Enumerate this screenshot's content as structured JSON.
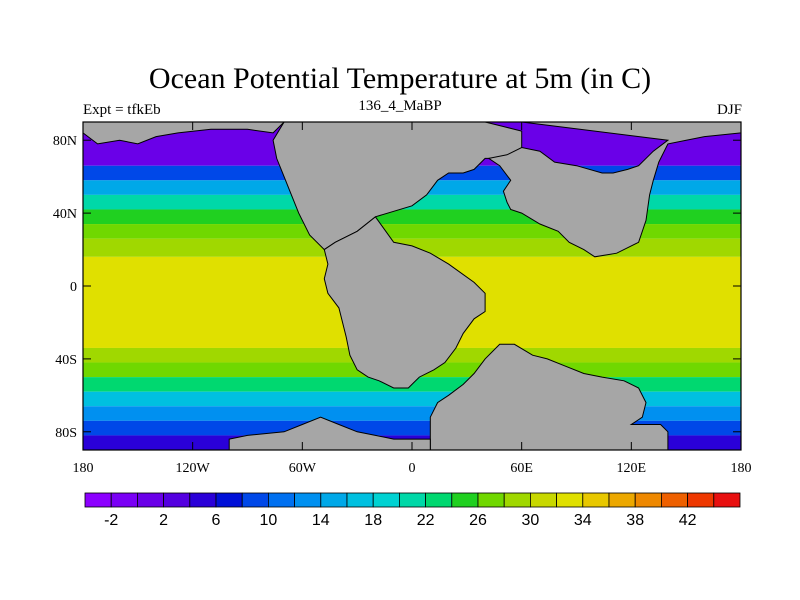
{
  "header": {
    "title": "Ocean Potential Temperature at 5m (in C)",
    "left": "Expt = tfkEb",
    "center": "136_4_MaBP",
    "right": "DJF"
  },
  "map": {
    "lon_range": [
      -180,
      180
    ],
    "lat_range": [
      -90,
      90
    ],
    "x_ticks": [
      {
        "value": -180,
        "label": "180"
      },
      {
        "value": -120,
        "label": "120W"
      },
      {
        "value": -60,
        "label": "60W"
      },
      {
        "value": 0,
        "label": "0"
      },
      {
        "value": 60,
        "label": "60E"
      },
      {
        "value": 120,
        "label": "120E"
      },
      {
        "value": 180,
        "label": "180"
      }
    ],
    "y_ticks": [
      {
        "value": 80,
        "label": "80N"
      },
      {
        "value": 40,
        "label": "40N"
      },
      {
        "value": 0,
        "label": "0"
      },
      {
        "value": -40,
        "label": "40S"
      },
      {
        "value": -80,
        "label": "80S"
      }
    ],
    "land_color": "#a6a6a6",
    "land_masses": [
      {
        "name": "north-pangea",
        "points": [
          [
            -70,
            90
          ],
          [
            -50,
            90
          ],
          [
            0,
            90
          ],
          [
            40,
            90
          ],
          [
            60,
            85
          ],
          [
            60,
            72
          ],
          [
            52,
            70
          ],
          [
            40,
            70
          ],
          [
            34,
            64
          ],
          [
            28,
            62
          ],
          [
            20,
            62
          ],
          [
            14,
            58
          ],
          [
            8,
            50
          ],
          [
            0,
            44
          ],
          [
            -20,
            38
          ],
          [
            -30,
            30
          ],
          [
            -42,
            24
          ],
          [
            -48,
            20
          ],
          [
            -56,
            28
          ],
          [
            -62,
            40
          ],
          [
            -66,
            50
          ],
          [
            -70,
            60
          ],
          [
            -74,
            70
          ],
          [
            -76,
            80
          ]
        ]
      },
      {
        "name": "north-pangea-east",
        "points": [
          [
            60,
            90
          ],
          [
            180,
            90
          ],
          [
            180,
            84
          ],
          [
            160,
            82
          ],
          [
            150,
            80
          ],
          [
            140,
            78
          ],
          [
            135,
            68
          ],
          [
            132,
            58
          ],
          [
            130,
            50
          ],
          [
            128,
            36
          ],
          [
            124,
            24
          ],
          [
            112,
            18
          ],
          [
            100,
            16
          ],
          [
            94,
            20
          ],
          [
            86,
            24
          ],
          [
            80,
            30
          ],
          [
            70,
            34
          ],
          [
            60,
            40
          ],
          [
            54,
            42
          ],
          [
            52,
            46
          ],
          [
            50,
            52
          ],
          [
            54,
            58
          ],
          [
            48,
            66
          ],
          [
            42,
            70
          ],
          [
            52,
            72
          ],
          [
            60,
            76
          ],
          [
            70,
            74
          ],
          [
            78,
            68
          ],
          [
            90,
            66
          ],
          [
            104,
            62
          ],
          [
            110,
            62
          ],
          [
            118,
            64
          ],
          [
            124,
            66
          ],
          [
            132,
            74
          ],
          [
            140,
            80
          ]
        ]
      },
      {
        "name": "gondwana-africa-sa",
        "points": [
          [
            -48,
            20
          ],
          [
            -42,
            24
          ],
          [
            -30,
            30
          ],
          [
            -20,
            38
          ],
          [
            -10,
            24
          ],
          [
            0,
            22
          ],
          [
            10,
            18
          ],
          [
            20,
            12
          ],
          [
            34,
            2
          ],
          [
            40,
            -4
          ],
          [
            40,
            -14
          ],
          [
            34,
            -18
          ],
          [
            28,
            -26
          ],
          [
            24,
            -34
          ],
          [
            18,
            -42
          ],
          [
            12,
            -46
          ],
          [
            4,
            -50
          ],
          [
            -2,
            -56
          ],
          [
            -10,
            -56
          ],
          [
            -18,
            -52
          ],
          [
            -24,
            -50
          ],
          [
            -30,
            -46
          ],
          [
            -34,
            -38
          ],
          [
            -36,
            -28
          ],
          [
            -40,
            -12
          ],
          [
            -46,
            -4
          ],
          [
            -48,
            4
          ],
          [
            -46,
            12
          ]
        ]
      },
      {
        "name": "antarctica-india-australia",
        "points": [
          [
            10,
            -80
          ],
          [
            10,
            -72
          ],
          [
            14,
            -64
          ],
          [
            20,
            -60
          ],
          [
            28,
            -54
          ],
          [
            34,
            -48
          ],
          [
            40,
            -40
          ],
          [
            48,
            -32
          ],
          [
            56,
            -32
          ],
          [
            66,
            -38
          ],
          [
            74,
            -40
          ],
          [
            84,
            -44
          ],
          [
            94,
            -48
          ],
          [
            104,
            -50
          ],
          [
            116,
            -52
          ],
          [
            124,
            -56
          ],
          [
            128,
            -64
          ],
          [
            126,
            -72
          ],
          [
            120,
            -76
          ],
          [
            136,
            -76
          ],
          [
            140,
            -80
          ],
          [
            140,
            -90
          ],
          [
            10,
            -90
          ]
        ]
      },
      {
        "name": "antarctic-west",
        "points": [
          [
            -100,
            -90
          ],
          [
            -100,
            -84
          ],
          [
            -90,
            -82
          ],
          [
            -70,
            -80
          ],
          [
            -60,
            -76
          ],
          [
            -50,
            -72
          ],
          [
            -40,
            -76
          ],
          [
            -30,
            -80
          ],
          [
            -20,
            -82
          ],
          [
            -10,
            -84
          ],
          [
            10,
            -84
          ],
          [
            10,
            -90
          ]
        ]
      },
      {
        "name": "north-america-west-tip",
        "points": [
          [
            -180,
            90
          ],
          [
            -180,
            84
          ],
          [
            -172,
            78
          ],
          [
            -160,
            80
          ],
          [
            -150,
            78
          ],
          [
            -140,
            82
          ],
          [
            -128,
            84
          ],
          [
            -110,
            86
          ],
          [
            -90,
            86
          ],
          [
            -76,
            84
          ],
          [
            -70,
            90
          ]
        ]
      }
    ]
  },
  "colorbar": {
    "colors": [
      "#8c00ff",
      "#7a00f5",
      "#6a00e8",
      "#5400e0",
      "#2a00d8",
      "#0010d8",
      "#0048e8",
      "#0070f0",
      "#0090f0",
      "#00a8e8",
      "#00c0e0",
      "#00d2d2",
      "#00d8a8",
      "#00d870",
      "#20d020",
      "#70d800",
      "#a0d800",
      "#c8d800",
      "#e0e000",
      "#e8c800",
      "#eca800",
      "#ee8800",
      "#ee6000",
      "#ee3800",
      "#e81010"
    ],
    "labels": [
      {
        "index": 1,
        "label": "-2"
      },
      {
        "index": 3,
        "label": "2"
      },
      {
        "index": 5,
        "label": "6"
      },
      {
        "index": 7,
        "label": "10"
      },
      {
        "index": 9,
        "label": "14"
      },
      {
        "index": 11,
        "label": "18"
      },
      {
        "index": 13,
        "label": "22"
      },
      {
        "index": 15,
        "label": "26"
      },
      {
        "index": 17,
        "label": "30"
      },
      {
        "index": 19,
        "label": "34"
      },
      {
        "index": 21,
        "label": "38"
      },
      {
        "index": 23,
        "label": "42"
      }
    ]
  },
  "temperature_bands": [
    {
      "lat_from": 90,
      "lat_to": 66,
      "value": -2
    },
    {
      "lat_from": 66,
      "lat_to": 58,
      "value": 6
    },
    {
      "lat_from": 58,
      "lat_to": 50,
      "value": 12
    },
    {
      "lat_from": 50,
      "lat_to": 42,
      "value": 18
    },
    {
      "lat_from": 42,
      "lat_to": 34,
      "value": 22
    },
    {
      "lat_from": 34,
      "lat_to": 26,
      "value": 25
    },
    {
      "lat_from": 26,
      "lat_to": 16,
      "value": 27
    },
    {
      "lat_from": 16,
      "lat_to": -34,
      "value": 31
    },
    {
      "lat_from": -34,
      "lat_to": -42,
      "value": 27
    },
    {
      "lat_from": -42,
      "lat_to": -50,
      "value": 24
    },
    {
      "lat_from": -50,
      "lat_to": -58,
      "value": 20
    },
    {
      "lat_from": -58,
      "lat_to": -66,
      "value": 15
    },
    {
      "lat_from": -66,
      "lat_to": -74,
      "value": 11
    },
    {
      "lat_from": -74,
      "lat_to": -82,
      "value": 7
    },
    {
      "lat_from": -82,
      "lat_to": -90,
      "value": 3
    }
  ]
}
